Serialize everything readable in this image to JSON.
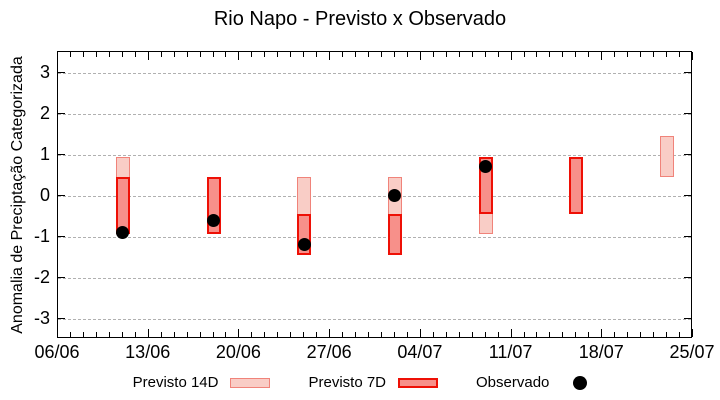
{
  "chart_data": {
    "type": "bar",
    "title": "Rio Napo - Previsto x Observado",
    "ylabel": "Anomalia de Preciptação Categorizada",
    "xlabel": "",
    "x_axis": {
      "tick_labels": [
        "06/06",
        "13/06",
        "20/06",
        "27/06",
        "04/07",
        "11/07",
        "18/07",
        "25/07"
      ],
      "major_tick_interval_days": 7,
      "minor_tick_interval_days": 1,
      "range_days": [
        0,
        49
      ]
    },
    "y_axis": {
      "ticks": [
        3,
        2,
        1,
        0,
        -1,
        -2,
        -3
      ],
      "range": [
        -3.5,
        3.5
      ],
      "grid": "dashed"
    },
    "legend_position": "bottom",
    "series": [
      {
        "name": "Previsto 14D",
        "type": "range-bar",
        "fill": "#f9cdc6",
        "stroke": "#f0837a",
        "points": [
          {
            "date": "11/06",
            "day": 5,
            "low": -0.95,
            "high": 0.95
          },
          {
            "date": "25/06",
            "day": 19,
            "low": -1.45,
            "high": 0.45
          },
          {
            "date": "02/07",
            "day": 26,
            "low": -1.45,
            "high": 0.45
          },
          {
            "date": "09/07",
            "day": 33,
            "low": -0.95,
            "high": 0.95
          },
          {
            "date": "23/07",
            "day": 47,
            "low": 0.45,
            "high": 1.45
          }
        ]
      },
      {
        "name": "Previsto 7D",
        "type": "range-bar",
        "fill": "#f7908a",
        "stroke": "#ee1006",
        "points": [
          {
            "date": "11/06",
            "day": 5,
            "low": -0.95,
            "high": 0.45
          },
          {
            "date": "18/06",
            "day": 12,
            "low": -0.95,
            "high": 0.45
          },
          {
            "date": "25/06",
            "day": 19,
            "low": -1.45,
            "high": -0.45
          },
          {
            "date": "02/07",
            "day": 26,
            "low": -1.45,
            "high": -0.45
          },
          {
            "date": "09/07",
            "day": 33,
            "low": -0.45,
            "high": 0.95
          },
          {
            "date": "16/07",
            "day": 40,
            "low": -0.45,
            "high": 0.95
          }
        ]
      },
      {
        "name": "Observado",
        "type": "scatter",
        "color": "#000000",
        "points": [
          {
            "date": "11/06",
            "day": 5,
            "value": -0.9
          },
          {
            "date": "18/06",
            "day": 12,
            "value": -0.6
          },
          {
            "date": "25/06",
            "day": 19,
            "value": -1.2
          },
          {
            "date": "02/07",
            "day": 26,
            "value": 0.0
          },
          {
            "date": "09/07",
            "day": 33,
            "value": 0.7
          }
        ]
      }
    ]
  }
}
